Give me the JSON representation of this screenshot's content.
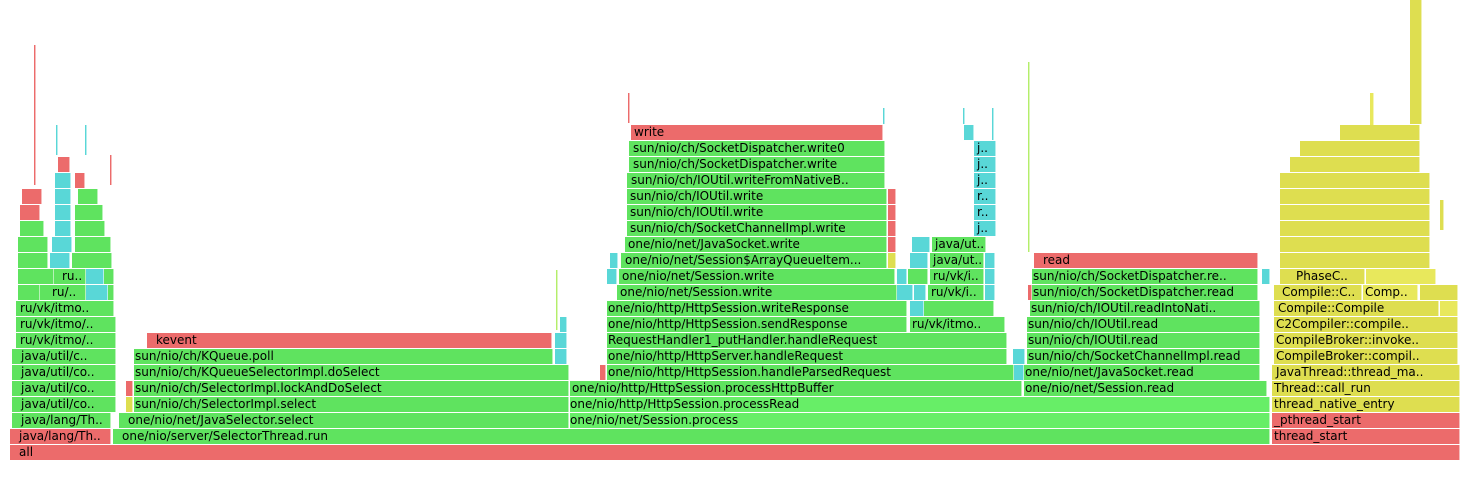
{
  "frames": {
    "all": "all",
    "java_lang_th_1": "java/lang/Th..",
    "java_lang_th_2": "java/lang/Th..",
    "java_util_co_1": "java/util/co..",
    "java_util_co_2": "java/util/co..",
    "java_util_co_3": "java/util/co..",
    "java_util_c": "java/util/c..",
    "ru_vk_itmo_1": "ru/vk/itmo/..",
    "ru_vk_itmo_2": "ru/vk/itmo/..",
    "ru_vk_itmo_3": "ru/vk/itmo..",
    "ru_1": "ru/..",
    "ru_2": "ru..",
    "selector_thread_run": "one/nio/server/SelectorThread.run",
    "java_selector_select": "one/nio/net/JavaSelector.select",
    "selector_impl_select": "sun/nio/ch/SelectorImpl.select",
    "lock_and_do_select": "sun/nio/ch/SelectorImpl.lockAndDoSelect",
    "kqueue_do_select": "sun/nio/ch/KQueueSelectorImpl.doSelect",
    "kqueue_poll": "sun/nio/ch/KQueue.poll",
    "kevent": "kevent",
    "session_process": "one/nio/net/Session.process",
    "process_read": "one/nio/http/HttpSession.processRead",
    "process_http_buffer": "one/nio/http/HttpSession.processHttpBuffer",
    "handle_parsed_request": "one/nio/http/HttpSession.handleParsedRequest",
    "handle_request": "one/nio/http/HttpServer.handleRequest",
    "put_handler": "RequestHandler1_putHandler.handleRequest",
    "send_response": "one/nio/http/HttpSession.sendResponse",
    "write_response": "one/nio/http/HttpSession.writeResponse",
    "session_write_1": "one/nio/net/Session.write",
    "session_write_2": "one/nio/net/Session.write",
    "array_queue_item": "one/nio/net/Session$ArrayQueueItem...",
    "java_socket_write": "one/nio/net/JavaSocket.write",
    "socket_channel_write": "sun/nio/ch/SocketChannelImpl.write",
    "ioutil_write_1": "sun/nio/ch/IOUtil.write",
    "ioutil_write_2": "sun/nio/ch/IOUtil.write",
    "write_from_native": "sun/nio/ch/IOUtil.writeFromNativeB..",
    "dispatcher_write": "sun/nio/ch/SocketDispatcher.write",
    "dispatcher_write0": "sun/nio/ch/SocketDispatcher.write0",
    "write": "write",
    "ru_vk_itmo_mid": "ru/vk/itmo..",
    "ru_vk_i_1": "ru/vk/i..",
    "ru_vk_i_2": "ru/vk/i..",
    "java_ut_1": "java/ut..",
    "java_ut_2": "java/ut..",
    "j_1": "j..",
    "j_2": "j..",
    "j_3": "j..",
    "j_4": "j..",
    "r_1": "r..",
    "r_2": "r..",
    "session_read": "one/nio/net/Session.read",
    "java_socket_read": "one/nio/net/JavaSocket.read",
    "socket_channel_read": "sun/nio/ch/SocketChannelImpl.read",
    "ioutil_read_1": "sun/nio/ch/IOUtil.read",
    "ioutil_read_2": "sun/nio/ch/IOUtil.read",
    "read_into_native": "sun/nio/ch/IOUtil.readIntoNati..",
    "dispatcher_read": "sun/nio/ch/SocketDispatcher.read",
    "dispatcher_re": "sun/nio/ch/SocketDispatcher.re..",
    "read": "read",
    "thread_start": "thread_start",
    "pthread_start": "_pthread_start",
    "thread_native_entry": "thread_native_entry",
    "thread_call_run": "Thread::call_run",
    "java_thread_ma": "JavaThread::thread_ma..",
    "compile_broker_compil": "CompileBroker::compil..",
    "compile_broker_invoke": "CompileBroker::invoke..",
    "c2_compile": "C2Compiler::compile..",
    "compile_compile": "Compile::Compile",
    "compile_c": "Compile::C..",
    "comp": "Comp..",
    "phase_c": "PhaseC.."
  },
  "colors": {
    "green": "#5fe35f",
    "red": "#ec6b6b",
    "cyan": "#59d7d7",
    "yellow": "#dede50"
  }
}
